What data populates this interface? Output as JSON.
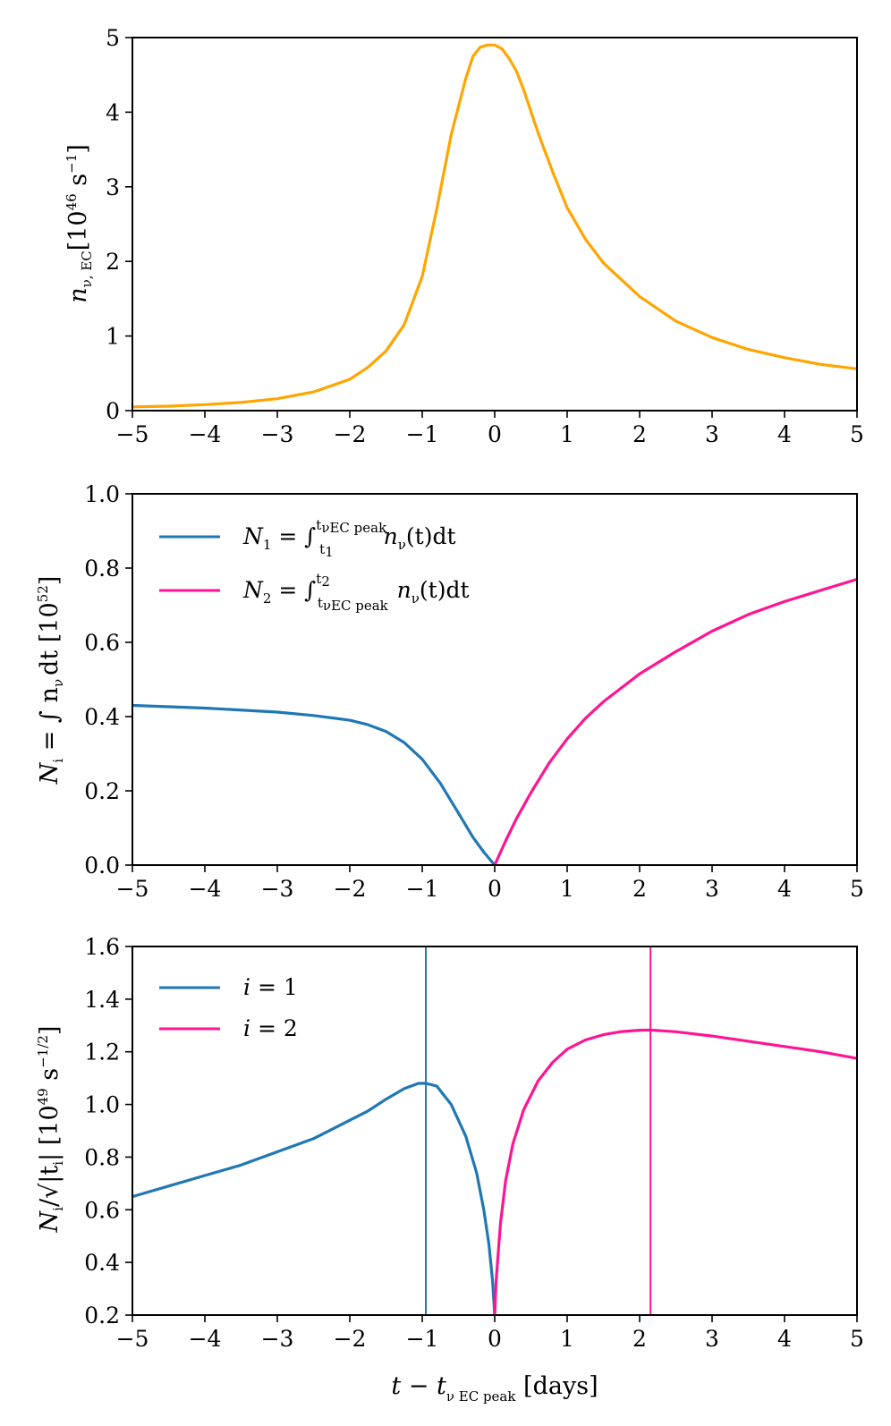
{
  "chart_data": [
    {
      "type": "line",
      "xlim": [
        -5,
        5
      ],
      "ylim": [
        0,
        5
      ],
      "xticks": [
        "−5",
        "−4",
        "−3",
        "−2",
        "−1",
        "0",
        "1",
        "2",
        "3",
        "4",
        "5"
      ],
      "yticks": [
        "0",
        "1",
        "2",
        "3",
        "4",
        "5"
      ],
      "ylabel": "n_ν,EC [10^46 s^−1]",
      "ylabel_main": "n",
      "ylabel_sub": "ν, EC",
      "ylabel_unit": "[10",
      "ylabel_exp": "46",
      "ylabel_unit2": " s",
      "ylabel_exp2": "−1",
      "ylabel_close": "]",
      "series": [
        {
          "name": "n_nu_EC",
          "color": "#ffa500",
          "x": [
            -5,
            -4.5,
            -4,
            -3.5,
            -3,
            -2.5,
            -2,
            -1.75,
            -1.5,
            -1.25,
            -1,
            -0.8,
            -0.6,
            -0.4,
            -0.3,
            -0.2,
            -0.1,
            0,
            0.1,
            0.2,
            0.3,
            0.4,
            0.6,
            0.8,
            1,
            1.25,
            1.5,
            2,
            2.5,
            3,
            3.5,
            4,
            4.5,
            5
          ],
          "y": [
            0.05,
            0.06,
            0.08,
            0.11,
            0.16,
            0.25,
            0.42,
            0.58,
            0.8,
            1.15,
            1.8,
            2.7,
            3.7,
            4.45,
            4.75,
            4.87,
            4.9,
            4.9,
            4.85,
            4.72,
            4.55,
            4.3,
            3.72,
            3.2,
            2.72,
            2.3,
            1.98,
            1.53,
            1.2,
            0.98,
            0.82,
            0.71,
            0.62,
            0.56
          ]
        }
      ]
    },
    {
      "type": "line",
      "xlim": [
        -5,
        5
      ],
      "ylim": [
        0,
        1
      ],
      "xticks": [
        "−5",
        "−4",
        "−3",
        "−2",
        "−1",
        "0",
        "1",
        "2",
        "3",
        "4",
        "5"
      ],
      "yticks": [
        "0.0",
        "0.2",
        "0.4",
        "0.6",
        "0.8",
        "1.0"
      ],
      "ylabel": "N_i = ∫ n_ν dt [10^52]",
      "ylabel_main": "N",
      "ylabel_sub": "i",
      "ylabel_mid": " = ∫ n",
      "ylabel_sub2": "ν",
      "ylabel_dt": "dt [10",
      "ylabel_exp": "52",
      "ylabel_close": "]",
      "legend": [
        {
          "N": "N",
          "i": "1",
          "rest": " = ∫",
          "upper": "t",
          "upper_sub": "νEC peak",
          "lower": "t",
          "lower_sub": "1",
          "integrand": " n",
          "integrand_sub": "ν",
          "tail": "(t)dt"
        },
        {
          "N": "N",
          "i": "2",
          "rest": " = ∫",
          "upper": "t",
          "upper_sub": "2",
          "lower": "t",
          "lower_sub": "νEC peak",
          "integrand": " n",
          "integrand_sub": "ν",
          "tail": "(t)dt"
        }
      ],
      "series": [
        {
          "name": "N1",
          "color": "#1f77b4",
          "x": [
            -5,
            -4,
            -3,
            -2.5,
            -2,
            -1.75,
            -1.5,
            -1.25,
            -1,
            -0.75,
            -0.5,
            -0.3,
            -0.15,
            0
          ],
          "y": [
            0.43,
            0.423,
            0.412,
            0.403,
            0.39,
            0.378,
            0.36,
            0.33,
            0.285,
            0.22,
            0.14,
            0.075,
            0.035,
            0
          ]
        },
        {
          "name": "N2",
          "color": "#ff1493",
          "x": [
            0,
            0.15,
            0.3,
            0.5,
            0.75,
            1,
            1.25,
            1.5,
            2,
            2.5,
            3,
            3.5,
            4,
            4.5,
            5
          ],
          "y": [
            0,
            0.065,
            0.125,
            0.195,
            0.275,
            0.34,
            0.395,
            0.44,
            0.515,
            0.575,
            0.63,
            0.675,
            0.71,
            0.74,
            0.77
          ]
        }
      ]
    },
    {
      "type": "line",
      "xlim": [
        -5,
        5
      ],
      "ylim": [
        0.2,
        1.6
      ],
      "xticks": [
        "−5",
        "−4",
        "−3",
        "−2",
        "−1",
        "0",
        "1",
        "2",
        "3",
        "4",
        "5"
      ],
      "yticks": [
        "0.2",
        "0.4",
        "0.6",
        "0.8",
        "1.0",
        "1.2",
        "1.4",
        "1.6"
      ],
      "xlabel": "t − t_νEC peak [days]",
      "xlabel_main": "t − t",
      "xlabel_sub": "ν EC peak",
      "xlabel_unit": " [days]",
      "ylabel": "N_i/√|t_i| [10^49 s^−1/2]",
      "ylabel_main": "N",
      "ylabel_sub": "i",
      "ylabel_mid": "/√|t",
      "ylabel_sub2": "i",
      "ylabel_bar": "| [10",
      "ylabel_exp": "49",
      "ylabel_unit2": " s",
      "ylabel_exp2": "−1/2",
      "ylabel_close": "]",
      "legend": [
        {
          "label_i": "i",
          "label_rest": " = 1"
        },
        {
          "label_i": "i",
          "label_rest": " = 2"
        }
      ],
      "vlines": [
        {
          "x": -0.95,
          "color": "#1f77b4"
        },
        {
          "x": 2.15,
          "color": "#ff1493"
        }
      ],
      "series": [
        {
          "name": "i = 1",
          "color": "#1f77b4",
          "x": [
            -5,
            -4.5,
            -4,
            -3.5,
            -3,
            -2.5,
            -2,
            -1.75,
            -1.5,
            -1.25,
            -1.05,
            -0.95,
            -0.8,
            -0.6,
            -0.4,
            -0.25,
            -0.15,
            -0.08,
            -0.03,
            0
          ],
          "y": [
            0.65,
            0.69,
            0.73,
            0.77,
            0.82,
            0.87,
            0.94,
            0.975,
            1.02,
            1.06,
            1.08,
            1.08,
            1.07,
            1.0,
            0.88,
            0.74,
            0.6,
            0.47,
            0.33,
            0.2
          ]
        },
        {
          "name": "i = 2",
          "color": "#ff1493",
          "x": [
            0,
            0.02,
            0.08,
            0.15,
            0.25,
            0.4,
            0.6,
            0.8,
            1,
            1.25,
            1.5,
            1.75,
            2,
            2.15,
            2.5,
            3,
            3.5,
            4,
            4.5,
            5
          ],
          "y": [
            0.2,
            0.33,
            0.55,
            0.71,
            0.85,
            0.98,
            1.09,
            1.16,
            1.21,
            1.245,
            1.265,
            1.277,
            1.282,
            1.283,
            1.276,
            1.26,
            1.24,
            1.22,
            1.2,
            1.175
          ]
        }
      ]
    }
  ]
}
